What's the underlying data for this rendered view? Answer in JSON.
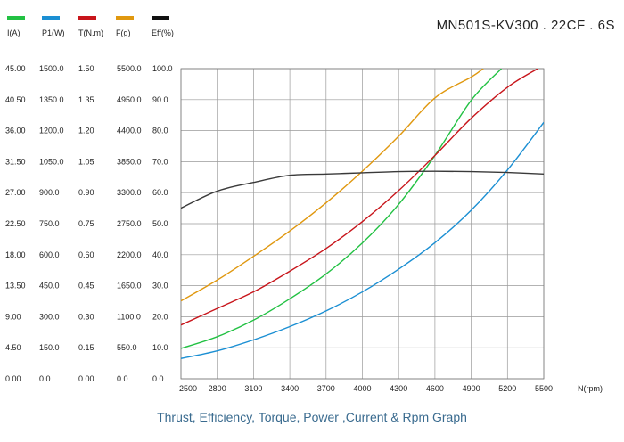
{
  "model_label": "MN501S-KV300 . 22CF . 6S",
  "caption": "Thrust, Efficiency, Torque, Power ,Current & Rpm Graph",
  "legend": [
    {
      "label": "I(A)",
      "color": "#22c143"
    },
    {
      "label": "P1(W)",
      "color": "#1b8fd3"
    },
    {
      "label": "T(N.m)",
      "color": "#c8151b"
    },
    {
      "label": "F(g)",
      "color": "#e0980f"
    },
    {
      "label": "Eff(%)",
      "color": "#111111"
    }
  ],
  "chart_data": {
    "type": "line",
    "xlabel": "N(rpm)",
    "xlim": [
      2500,
      5500
    ],
    "x_ticks": [
      "2500",
      "2800",
      "3100",
      "3400",
      "3700",
      "4000",
      "4300",
      "4600",
      "4900",
      "5200",
      "5500"
    ],
    "axes": [
      {
        "name": "I(A)",
        "range": [
          0,
          45
        ],
        "ticks": [
          "0.00",
          "4.50",
          "9.00",
          "13.50",
          "18.00",
          "22.50",
          "27.00",
          "31.50",
          "36.00",
          "40.50",
          "45.00"
        ]
      },
      {
        "name": "P1(W)",
        "range": [
          0,
          1500
        ],
        "ticks": [
          "0.0",
          "150.0",
          "300.0",
          "450.0",
          "600.0",
          "750.0",
          "900.0",
          "1050.0",
          "1200.0",
          "1350.0",
          "1500.0"
        ]
      },
      {
        "name": "T(N.m)",
        "range": [
          0,
          1.5
        ],
        "ticks": [
          "0.00",
          "0.15",
          "0.30",
          "0.45",
          "0.60",
          "0.75",
          "0.90",
          "1.05",
          "1.20",
          "1.35",
          "1.50"
        ]
      },
      {
        "name": "F(g)",
        "range": [
          0,
          5500
        ],
        "ticks": [
          "0.0",
          "550.0",
          "1100.0",
          "1650.0",
          "2200.0",
          "2750.0",
          "3300.0",
          "3850.0",
          "4400.0",
          "4950.0",
          "5500.0"
        ]
      },
      {
        "name": "Eff(%)",
        "range": [
          0,
          100
        ],
        "ticks": [
          "0.0",
          "10.0",
          "20.0",
          "30.0",
          "40.0",
          "50.0",
          "60.0",
          "70.0",
          "80.0",
          "90.0",
          "100.0"
        ]
      }
    ],
    "series": [
      {
        "name": "I(A)",
        "color": "#22c143",
        "x": [
          2500,
          2800,
          3100,
          3400,
          3700,
          4000,
          4300,
          4600,
          4900,
          5150
        ],
        "values": [
          4.4,
          6.1,
          8.5,
          11.6,
          15.2,
          19.7,
          25.3,
          32.4,
          40.4,
          45.0
        ]
      },
      {
        "name": "P1(W)",
        "color": "#1b8fd3",
        "x": [
          2500,
          2800,
          3100,
          3400,
          3700,
          4000,
          4300,
          4600,
          4900,
          5200,
          5500
        ],
        "values": [
          98,
          135,
          188,
          252,
          328,
          420,
          530,
          658,
          815,
          1010,
          1240
        ]
      },
      {
        "name": "T(N.m)",
        "color": "#c8151b",
        "x": [
          2500,
          2800,
          3100,
          3400,
          3700,
          4000,
          4300,
          4600,
          4900,
          5200,
          5450
        ],
        "values": [
          0.26,
          0.34,
          0.42,
          0.52,
          0.63,
          0.76,
          0.91,
          1.08,
          1.26,
          1.41,
          1.5
        ]
      },
      {
        "name": "F(g)",
        "color": "#e0980f",
        "x": [
          2500,
          2800,
          3100,
          3400,
          3700,
          4000,
          4300,
          4600,
          4900,
          5000
        ],
        "values": [
          1380,
          1750,
          2170,
          2620,
          3120,
          3680,
          4300,
          4980,
          5350,
          5500
        ]
      },
      {
        "name": "Eff(%)",
        "color": "#3a3a3a",
        "x": [
          2500,
          2800,
          3100,
          3400,
          3700,
          4000,
          4300,
          4600,
          4900,
          5200,
          5500
        ],
        "values": [
          55.0,
          60.5,
          63.3,
          65.6,
          66.0,
          66.4,
          66.8,
          66.9,
          66.8,
          66.5,
          66.0
        ]
      }
    ]
  }
}
